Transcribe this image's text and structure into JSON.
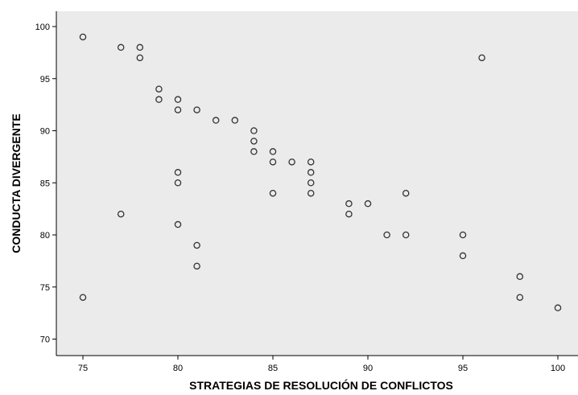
{
  "chart_data": {
    "type": "scatter",
    "title": "",
    "xlabel": "STRATEGIAS DE RESOLUCIÓN DE CONFLICTOS",
    "ylabel": "CONDUCTA DIVERGENTE",
    "xlim": [
      72.5,
      101
    ],
    "ylim": [
      68.75,
      101.5
    ],
    "xticks": [
      75,
      80,
      85,
      90,
      95,
      100
    ],
    "yticks": [
      70,
      75,
      80,
      85,
      90,
      95,
      100
    ],
    "grid": false,
    "colors": {
      "plot_background": "#ebebeb",
      "axis": "#000000",
      "marker_stroke": "#333333"
    },
    "points": [
      {
        "x": 75,
        "y": 99
      },
      {
        "x": 75,
        "y": 74
      },
      {
        "x": 77,
        "y": 98
      },
      {
        "x": 77,
        "y": 82
      },
      {
        "x": 78,
        "y": 98
      },
      {
        "x": 78,
        "y": 97
      },
      {
        "x": 79,
        "y": 94
      },
      {
        "x": 79,
        "y": 93
      },
      {
        "x": 80,
        "y": 93
      },
      {
        "x": 80,
        "y": 92
      },
      {
        "x": 80,
        "y": 86
      },
      {
        "x": 80,
        "y": 85
      },
      {
        "x": 80,
        "y": 81
      },
      {
        "x": 81,
        "y": 92
      },
      {
        "x": 81,
        "y": 79
      },
      {
        "x": 81,
        "y": 77
      },
      {
        "x": 82,
        "y": 91
      },
      {
        "x": 83,
        "y": 91
      },
      {
        "x": 84,
        "y": 90
      },
      {
        "x": 84,
        "y": 89
      },
      {
        "x": 84,
        "y": 88
      },
      {
        "x": 85,
        "y": 88
      },
      {
        "x": 85,
        "y": 87
      },
      {
        "x": 85,
        "y": 84
      },
      {
        "x": 86,
        "y": 87
      },
      {
        "x": 87,
        "y": 87
      },
      {
        "x": 87,
        "y": 86
      },
      {
        "x": 87,
        "y": 85
      },
      {
        "x": 87,
        "y": 84
      },
      {
        "x": 89,
        "y": 83
      },
      {
        "x": 89,
        "y": 82
      },
      {
        "x": 90,
        "y": 83
      },
      {
        "x": 91,
        "y": 80
      },
      {
        "x": 92,
        "y": 84
      },
      {
        "x": 92,
        "y": 80
      },
      {
        "x": 95,
        "y": 80
      },
      {
        "x": 95,
        "y": 78
      },
      {
        "x": 96,
        "y": 97
      },
      {
        "x": 98,
        "y": 76
      },
      {
        "x": 98,
        "y": 74
      },
      {
        "x": 100,
        "y": 73
      }
    ]
  }
}
